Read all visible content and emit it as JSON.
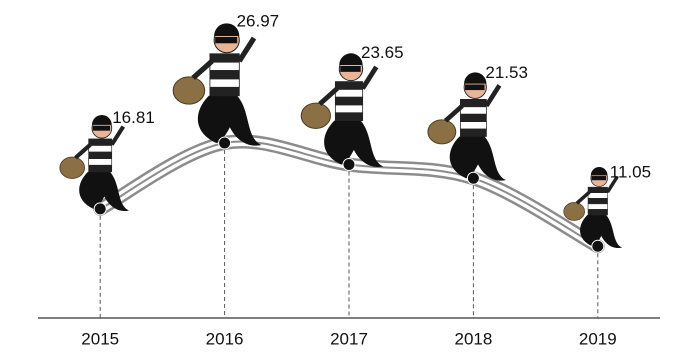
{
  "chart_data": {
    "type": "line",
    "categories": [
      "2015",
      "2016",
      "2017",
      "2018",
      "2019"
    ],
    "values": [
      16.81,
      26.97,
      23.65,
      21.53,
      11.05
    ],
    "ylim": [
      0,
      49
    ],
    "color": "#8c8c8c"
  }
}
